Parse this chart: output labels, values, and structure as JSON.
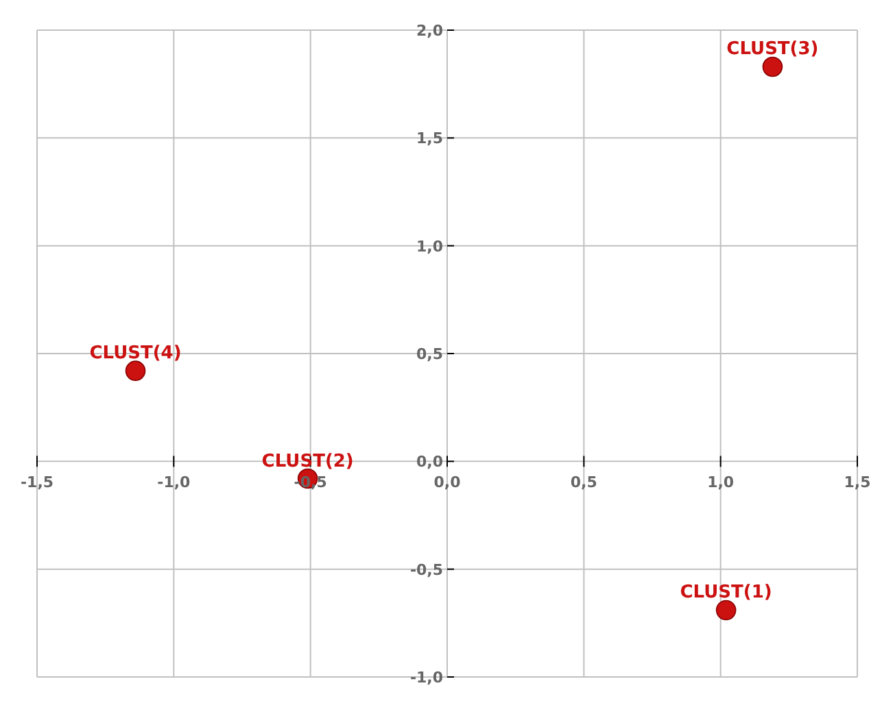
{
  "chart_data": {
    "type": "scatter",
    "x": [
      1.02,
      -0.51,
      1.19,
      -1.14
    ],
    "values": [
      -0.69,
      -0.08,
      1.83,
      0.42
    ],
    "color": "#cc1111",
    "marker": "circle",
    "xlim": [
      -1.5,
      1.5
    ],
    "ylim": [
      -1.0,
      2.0
    ],
    "xticks": [
      {
        "value": -1.5,
        "label": "-1,5"
      },
      {
        "value": -1.0,
        "label": "-1,0"
      },
      {
        "value": -0.5,
        "label": "-0,5"
      },
      {
        "value": 0,
        "label": "0,0"
      },
      {
        "value": 0.5,
        "label": "0,5"
      },
      {
        "value": 1.0,
        "label": "1,0"
      },
      {
        "value": 1.5,
        "label": "1,5"
      }
    ],
    "yticks": [
      {
        "value": -1.0,
        "label": "-1,0"
      },
      {
        "value": -0.5,
        "label": "-0,5"
      },
      {
        "value": 0,
        "label": "0,0"
      },
      {
        "value": 0.5,
        "label": "0,5"
      },
      {
        "value": 1.0,
        "label": "1,0"
      },
      {
        "value": 1.5,
        "label": "1,5"
      },
      {
        "value": 2.0,
        "label": "2,0"
      }
    ],
    "grid": true,
    "annotations": [
      {
        "text": "CLUST(1)",
        "x": 1.02,
        "y": -0.69
      },
      {
        "text": "CLUST(2)",
        "x": -0.51,
        "y": -0.08
      },
      {
        "text": "CLUST(3)",
        "x": 1.19,
        "y": 1.83
      },
      {
        "text": "CLUST(4)",
        "x": -1.14,
        "y": 0.42
      }
    ]
  }
}
